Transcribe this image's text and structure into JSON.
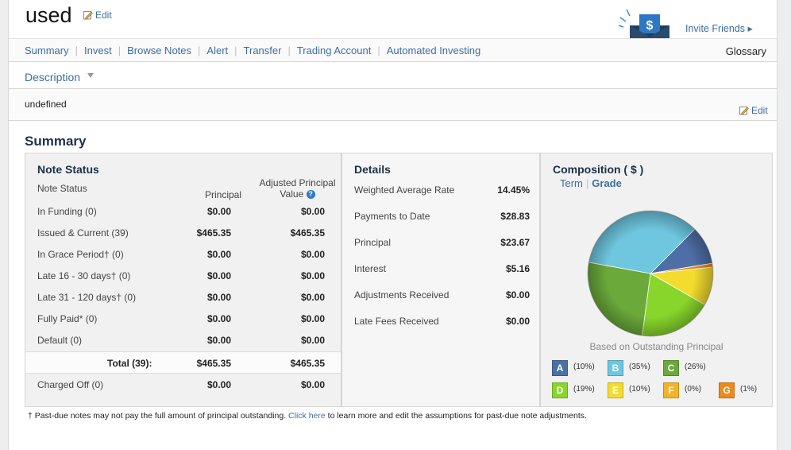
{
  "header": {
    "title": "used",
    "edit_label": "Edit",
    "invite_label": "Invite Friends ▸"
  },
  "nav": {
    "items": [
      "Summary",
      "Invest",
      "Browse Notes",
      "Alert",
      "Transfer",
      "Trading Account",
      "Automated Investing"
    ],
    "glossary": "Glossary"
  },
  "description": {
    "label": "Description",
    "text": "undefined",
    "edit_label": "Edit"
  },
  "summary": {
    "heading": "Summary"
  },
  "note_status": {
    "heading": "Note Status",
    "sub_label": "Note Status",
    "col_principal": "Principal",
    "col_adjusted": "Adjusted Principal Value",
    "rows": [
      {
        "label": "In Funding (0)",
        "principal": "$0.00",
        "adjusted": "$0.00"
      },
      {
        "label": "Issued & Current (39)",
        "principal": "$465.35",
        "adjusted": "$465.35"
      },
      {
        "label": "In Grace Period† (0)",
        "principal": "$0.00",
        "adjusted": "$0.00"
      },
      {
        "label": "Late 16 - 30 days† (0)",
        "principal": "$0.00",
        "adjusted": "$0.00"
      },
      {
        "label": "Late 31 - 120 days† (0)",
        "principal": "$0.00",
        "adjusted": "$0.00"
      },
      {
        "label": "Fully Paid* (0)",
        "principal": "$0.00",
        "adjusted": "$0.00"
      },
      {
        "label": "Default (0)",
        "principal": "$0.00",
        "adjusted": "$0.00"
      }
    ],
    "total": {
      "label": "Total (39):",
      "principal": "$465.35",
      "adjusted": "$465.35"
    },
    "charged_off": {
      "label": "Charged Off (0)",
      "principal": "$0.00",
      "adjusted": "$0.00"
    }
  },
  "details": {
    "heading": "Details",
    "rows": [
      {
        "label": "Weighted Average Rate",
        "value": "14.45%"
      },
      {
        "label": "Payments to Date",
        "value": "$28.83"
      },
      {
        "label": "Principal",
        "value": "$23.67"
      },
      {
        "label": "Interest",
        "value": "$5.16"
      },
      {
        "label": "Adjustments Received",
        "value": "$0.00"
      },
      {
        "label": "Late Fees Received",
        "value": "$0.00"
      }
    ]
  },
  "composition": {
    "heading": "Composition ( $ )",
    "tabs": [
      "Term",
      "Grade"
    ],
    "active_tab": "Grade",
    "based_on": "Based on Outstanding Principal",
    "grades": [
      {
        "grade": "A",
        "pct_label": "(10%)",
        "value": 10,
        "color": "#4e6fa6"
      },
      {
        "grade": "B",
        "pct_label": "(35%)",
        "value": 35,
        "color": "#6ec6df"
      },
      {
        "grade": "C",
        "pct_label": "(26%)",
        "value": 26,
        "color": "#6aa93a"
      },
      {
        "grade": "D",
        "pct_label": "(19%)",
        "value": 19,
        "color": "#88d62b"
      },
      {
        "grade": "E",
        "pct_label": "(10%)",
        "value": 10,
        "color": "#f3dc2e"
      },
      {
        "grade": "F",
        "pct_label": "(0%)",
        "value": 0,
        "color": "#f4b22a"
      },
      {
        "grade": "G",
        "pct_label": "(1%)",
        "value": 1,
        "color": "#ec8a1d"
      }
    ]
  },
  "footnote": {
    "before": "† Past-due notes may not pay the full amount of principal outstanding.",
    "link": "Click here",
    "after": "to learn more and edit the assumptions for past-due note adjustments."
  }
}
